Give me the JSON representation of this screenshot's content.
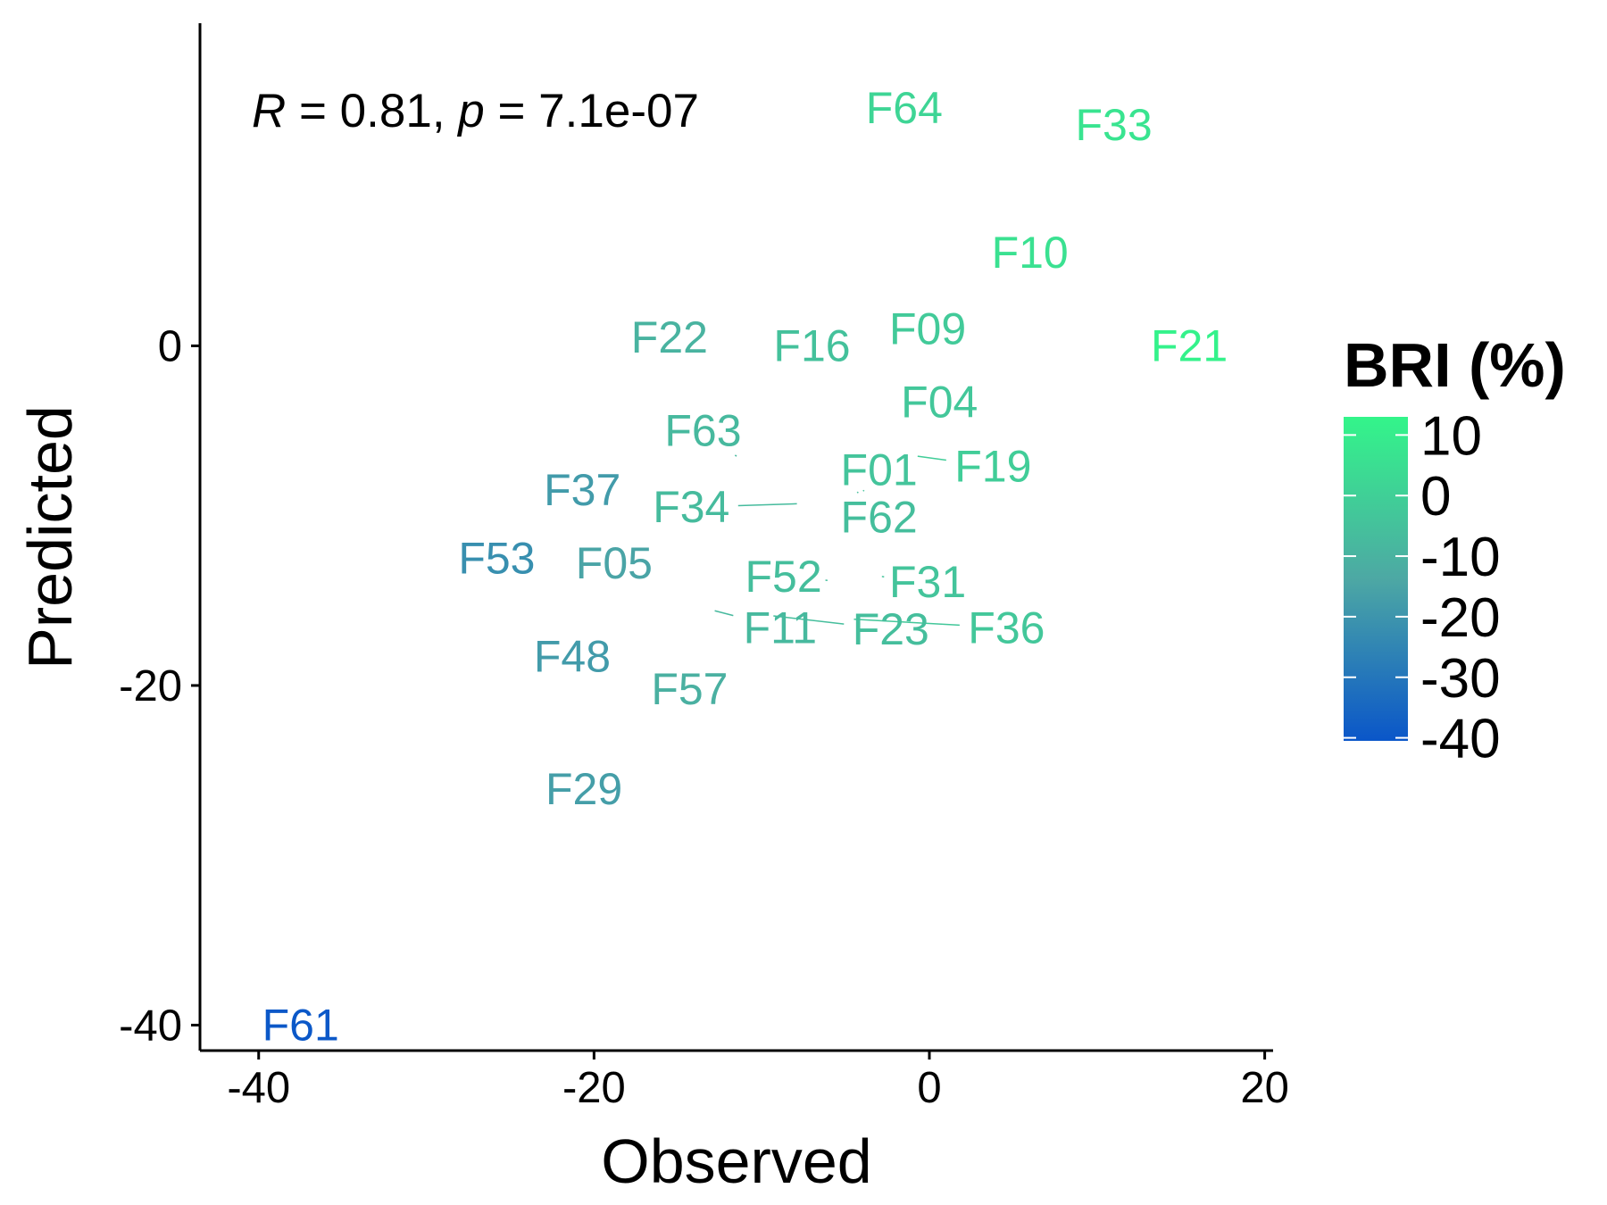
{
  "chart_data": {
    "type": "scatter",
    "xlabel": "Observed",
    "ylabel": "Predicted",
    "xlim": [
      -43.5,
      20.5
    ],
    "ylim": [
      -41.5,
      19
    ],
    "x_ticks": [
      -40,
      -20,
      0,
      20
    ],
    "x_tick_labels": [
      "-40",
      "-20",
      "0",
      "20"
    ],
    "y_ticks": [
      -40,
      -20,
      0
    ],
    "y_tick_labels": [
      "-40",
      "-20",
      "0"
    ],
    "grid": false,
    "annotation": {
      "r_symbol": "R",
      "r_text": " = 0.81, ",
      "p_symbol": "p",
      "p_text": " = 7.1e-07"
    },
    "legend": {
      "title": "BRI (%)",
      "placement": "right",
      "type": "colorbar",
      "range": [
        -40.5,
        13
      ],
      "ticks": [
        10,
        0,
        -10,
        -20,
        -30,
        -40
      ],
      "tick_labels": [
        "10",
        "0",
        "-10",
        "-20",
        "-30",
        "-40"
      ],
      "color_low": "#0a56c9",
      "color_mid": "#4da8a4",
      "color_high": "#33f58a"
    },
    "points": [
      {
        "label": "F64",
        "x": -1.5,
        "y": 14.0,
        "bri": 2
      },
      {
        "label": "F33",
        "x": 11.0,
        "y": 13.0,
        "bri": 7
      },
      {
        "label": "F10",
        "x": 6.0,
        "y": 5.5,
        "bri": 6
      },
      {
        "label": "F22",
        "x": -15.5,
        "y": 0.5,
        "bri": -10
      },
      {
        "label": "F16",
        "x": -7.0,
        "y": 0.0,
        "bri": -5
      },
      {
        "label": "F09",
        "x": -0.1,
        "y": 1.0,
        "bri": -2
      },
      {
        "label": "F21",
        "x": 15.5,
        "y": 0.0,
        "bri": 12
      },
      {
        "label": "F04",
        "x": 0.6,
        "y": -3.3,
        "bri": -3
      },
      {
        "label": "F63",
        "x": -11.5,
        "y": -6.5,
        "bri": -8
      },
      {
        "label": "F01",
        "x": -3.9,
        "y": -8.5,
        "bri": -4
      },
      {
        "label": "F19",
        "x": -0.7,
        "y": -6.5,
        "bri": -1
      },
      {
        "label": "F37",
        "x": -20.7,
        "y": -8.5,
        "bri": -18
      },
      {
        "label": "F34",
        "x": -7.9,
        "y": -9.3,
        "bri": -7
      },
      {
        "label": "F62",
        "x": -4.3,
        "y": -8.6,
        "bri": -6
      },
      {
        "label": "F53",
        "x": -25.8,
        "y": -12.5,
        "bri": -22
      },
      {
        "label": "F05",
        "x": -18.8,
        "y": -12.8,
        "bri": -15
      },
      {
        "label": "F52",
        "x": -6.2,
        "y": -13.8,
        "bri": -6
      },
      {
        "label": "F31",
        "x": -2.7,
        "y": -13.6,
        "bri": -4
      },
      {
        "label": "F11",
        "x": -12.8,
        "y": -15.6,
        "bri": -8
      },
      {
        "label": "F23",
        "x": -9.3,
        "y": -15.9,
        "bri": -6
      },
      {
        "label": "F36",
        "x": -4.5,
        "y": -16.1,
        "bri": -3
      },
      {
        "label": "F48",
        "x": -21.3,
        "y": -18.3,
        "bri": -18
      },
      {
        "label": "F57",
        "x": -14.3,
        "y": -20.2,
        "bri": -11
      },
      {
        "label": "F29",
        "x": -20.6,
        "y": -26.1,
        "bri": -17
      },
      {
        "label": "F61",
        "x": -37.5,
        "y": -40.0,
        "bri": -40
      }
    ],
    "label_offsets": [
      {
        "label": "F63",
        "dx": -2.0,
        "dy": 1.5
      },
      {
        "label": "F01",
        "dx": 0.9,
        "dy": 1.2
      },
      {
        "label": "F19",
        "dx": 4.5,
        "dy": -0.6
      },
      {
        "label": "F34",
        "dx": -6.3,
        "dy": -0.2
      },
      {
        "label": "F62",
        "dx": 1.3,
        "dy": -1.5
      },
      {
        "label": "F52",
        "dx": -2.5,
        "dy": 0.2
      },
      {
        "label": "F31",
        "dx": 2.6,
        "dy": -0.3
      },
      {
        "label": "F11",
        "dx": 3.9,
        "dy": -1.0
      },
      {
        "label": "F23",
        "dx": 7.0,
        "dy": -0.8
      },
      {
        "label": "F36",
        "dx": 9.1,
        "dy": -0.5
      }
    ]
  }
}
